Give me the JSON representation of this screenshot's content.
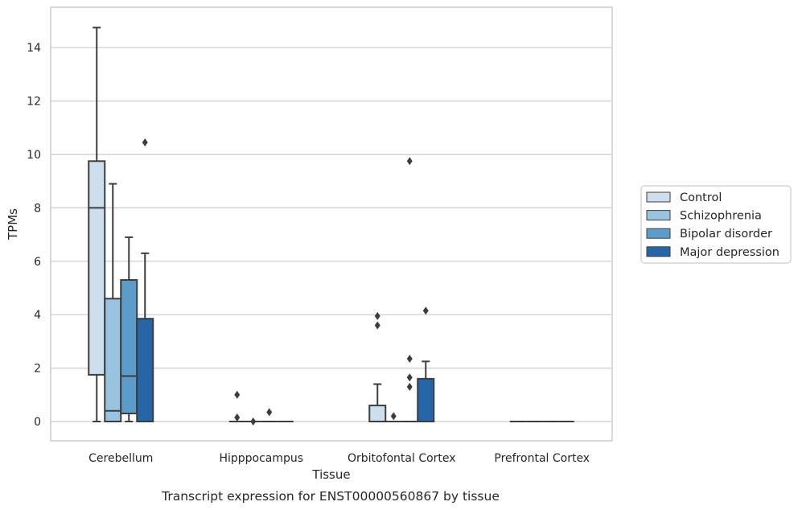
{
  "chart_data": {
    "type": "box",
    "title": "Transcript expression for ENST00000560867 by tissue",
    "xlabel": "Tissue",
    "ylabel": "TPMs",
    "ylim": [
      -0.7,
      15.5
    ],
    "yticks": [
      0,
      2,
      4,
      6,
      8,
      10,
      12,
      14
    ],
    "grid": true,
    "legend_position": "right",
    "categories": [
      "Cerebellum",
      "Hipppocampus",
      "Orbitofontal Cortex",
      "Prefrontal Cortex"
    ],
    "series": [
      {
        "name": "Control",
        "color": "#cddeef",
        "boxes": [
          {
            "whislo": 0,
            "q1": 1.75,
            "med": 8.0,
            "q3": 9.75,
            "whishi": 14.75,
            "fliers": []
          },
          {
            "whislo": 0,
            "q1": 0,
            "med": 0,
            "q3": 0,
            "whishi": 0,
            "fliers": [
              1.0,
              0.15
            ]
          },
          {
            "whislo": 0,
            "q1": 0,
            "med": 0,
            "q3": 0.6,
            "whishi": 1.4,
            "fliers": [
              3.95,
              3.6
            ]
          },
          {
            "whislo": 0,
            "q1": 0,
            "med": 0,
            "q3": 0,
            "whishi": 0,
            "fliers": []
          }
        ]
      },
      {
        "name": "Schizophrenia",
        "color": "#9ac3df",
        "boxes": [
          {
            "whislo": 0,
            "q1": 0,
            "med": 0.4,
            "q3": 4.6,
            "whishi": 8.9,
            "fliers": []
          },
          {
            "whislo": 0,
            "q1": 0,
            "med": 0,
            "q3": 0,
            "whishi": 0,
            "fliers": [
              0.0
            ]
          },
          {
            "whislo": 0,
            "q1": 0,
            "med": 0,
            "q3": 0,
            "whishi": 0,
            "fliers": [
              0.2
            ]
          },
          {
            "whislo": 0,
            "q1": 0,
            "med": 0,
            "q3": 0,
            "whishi": 0,
            "fliers": []
          }
        ]
      },
      {
        "name": "Bipolar disorder",
        "color": "#5b9ccb",
        "boxes": [
          {
            "whislo": 0,
            "q1": 0.3,
            "med": 1.7,
            "q3": 5.3,
            "whishi": 6.9,
            "fliers": []
          },
          {
            "whislo": 0,
            "q1": 0,
            "med": 0,
            "q3": 0,
            "whishi": 0,
            "fliers": [
              0.35
            ]
          },
          {
            "whislo": 0,
            "q1": 0,
            "med": 0,
            "q3": 0,
            "whishi": 0,
            "fliers": [
              2.35,
              9.75,
              1.65,
              1.3
            ]
          },
          {
            "whislo": 0,
            "q1": 0,
            "med": 0,
            "q3": 0,
            "whishi": 0,
            "fliers": []
          }
        ]
      },
      {
        "name": "Major depression",
        "color": "#2666a6",
        "boxes": [
          {
            "whislo": 0,
            "q1": 0,
            "med": 0,
            "q3": 3.85,
            "whishi": 6.3,
            "fliers": [
              10.45
            ]
          },
          {
            "whislo": 0,
            "q1": 0,
            "med": 0,
            "q3": 0,
            "whishi": 0,
            "fliers": []
          },
          {
            "whislo": 0,
            "q1": 0,
            "med": 0,
            "q3": 1.6,
            "whishi": 2.25,
            "fliers": [
              4.15
            ]
          },
          {
            "whislo": 0,
            "q1": 0,
            "med": 0,
            "q3": 0,
            "whishi": 0,
            "fliers": []
          }
        ]
      }
    ]
  }
}
